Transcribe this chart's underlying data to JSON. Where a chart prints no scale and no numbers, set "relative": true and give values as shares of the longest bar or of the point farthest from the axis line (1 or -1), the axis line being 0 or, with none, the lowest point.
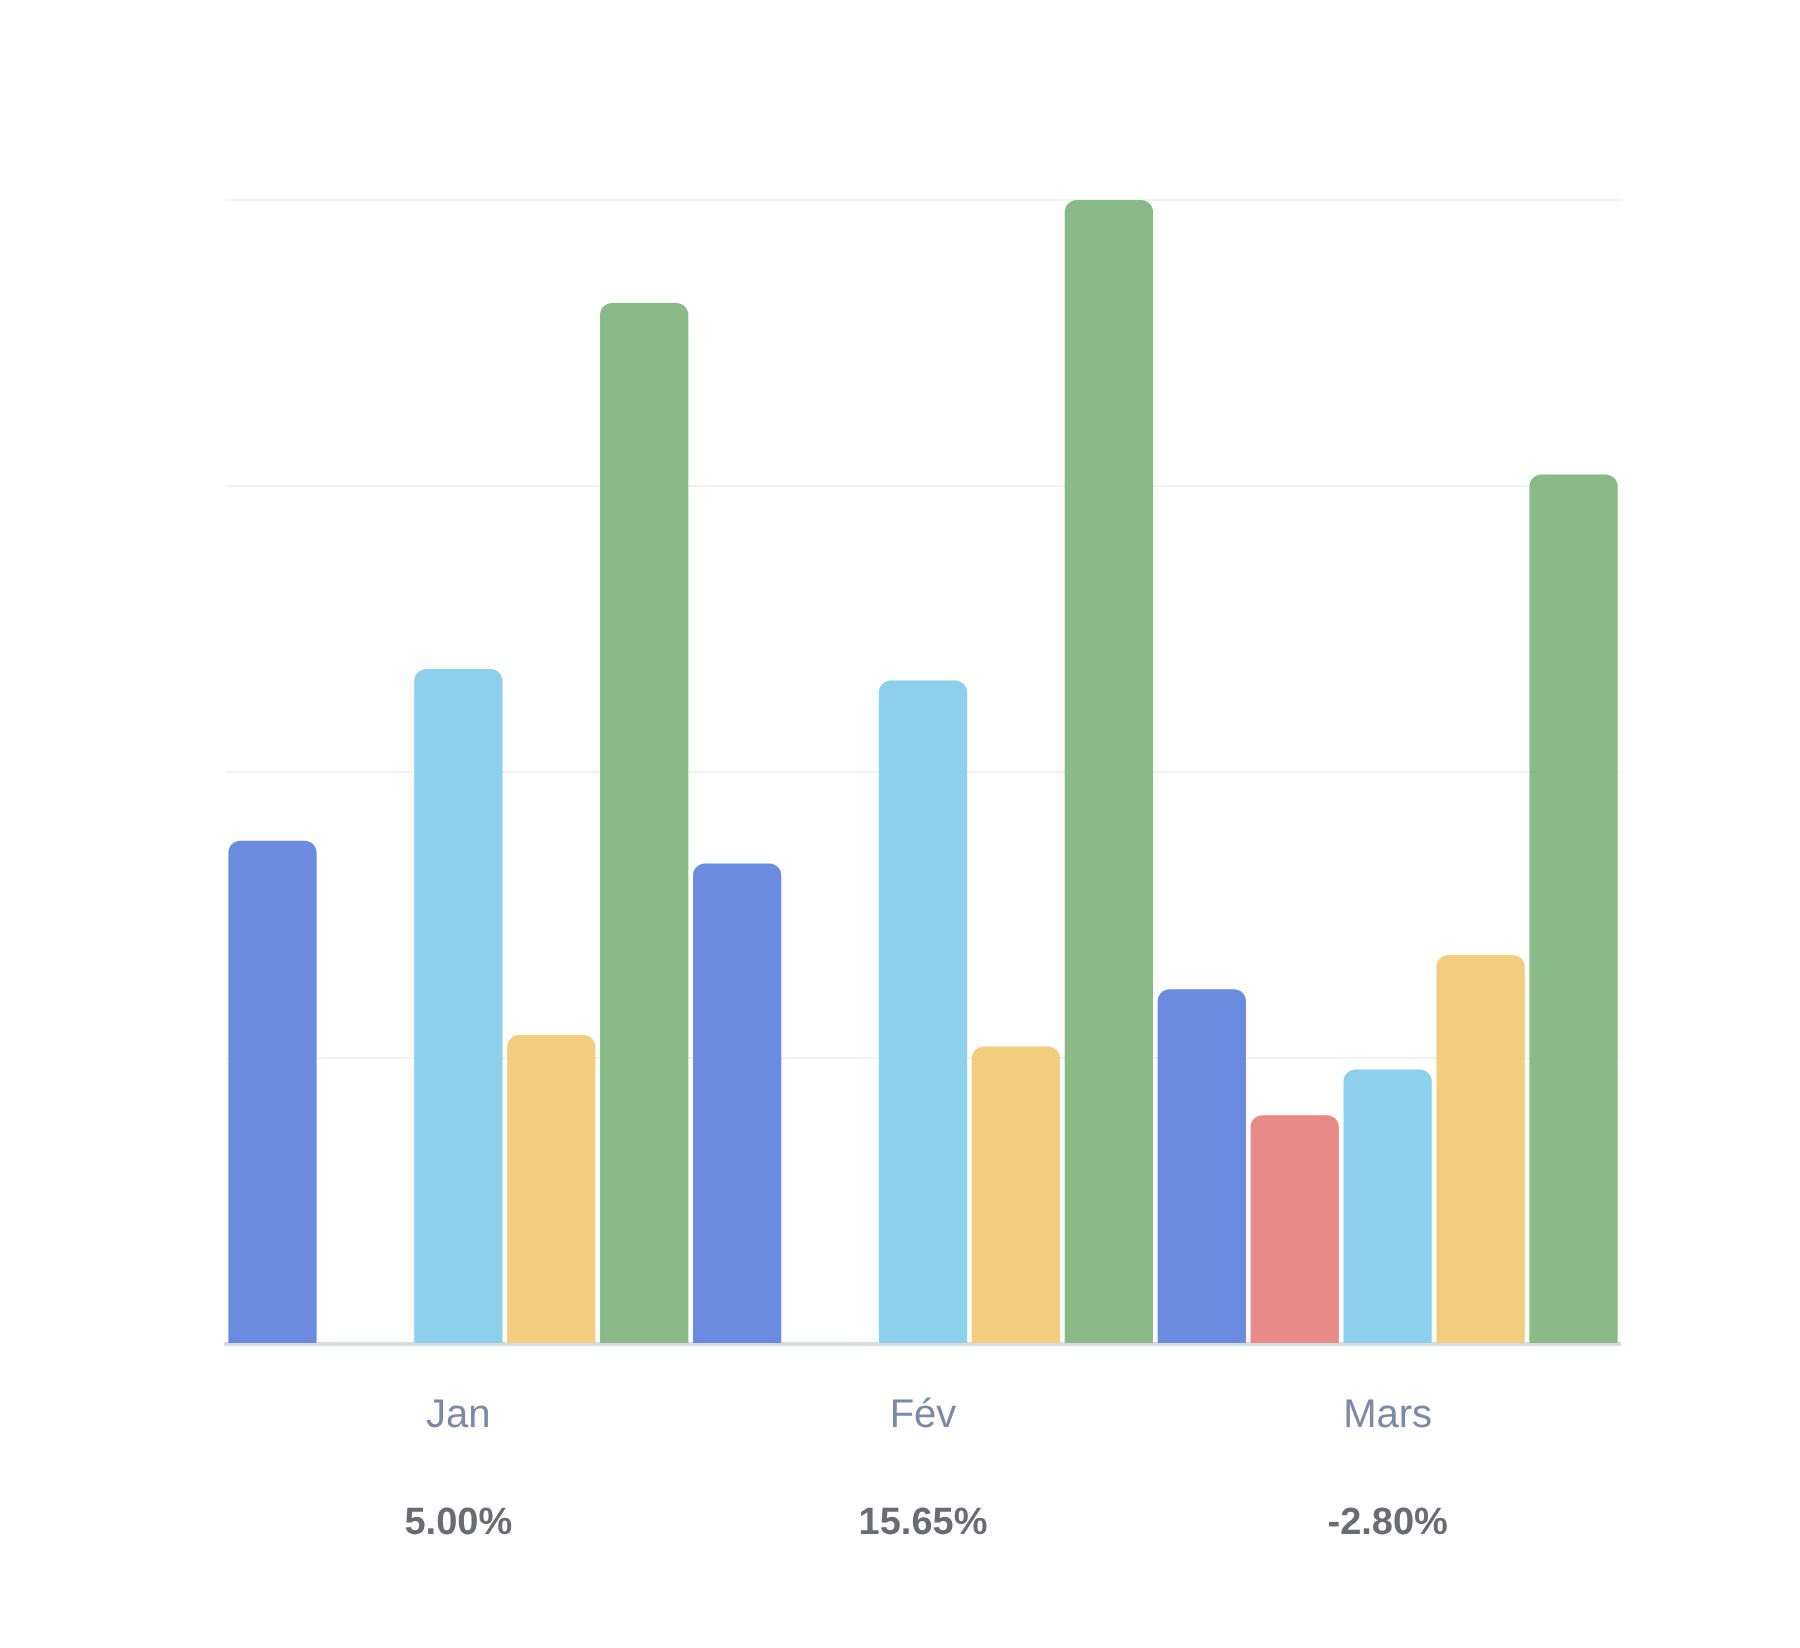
{
  "chart_data": {
    "type": "bar",
    "relative": true,
    "grid": "y",
    "categories": [
      "Jan",
      "Fév",
      "Mars"
    ],
    "series": [
      {
        "color": "#6a8be0",
        "values": [
          0.44,
          0.42,
          0.31
        ]
      },
      {
        "color": "#e88a86",
        "values": [
          null,
          null,
          0.2
        ]
      },
      {
        "color": "#8dd0eb",
        "values": [
          0.59,
          0.58,
          0.24
        ]
      },
      {
        "color": "#f2cd7e",
        "values": [
          0.27,
          0.26,
          0.34
        ]
      },
      {
        "color": "#88b986",
        "values": [
          0.91,
          1,
          0.76
        ]
      }
    ],
    "annotations": [
      "5.00%",
      "15.65%",
      "-2.80%"
    ]
  }
}
